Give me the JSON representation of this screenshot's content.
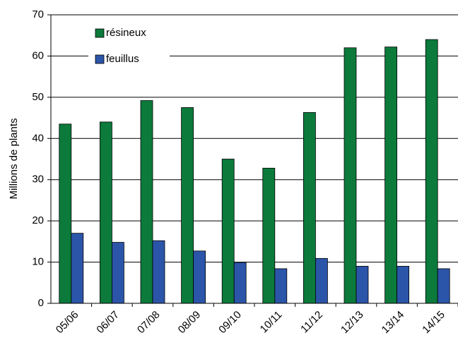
{
  "chart_data": {
    "type": "bar",
    "y_label": "Millions de plants",
    "categories": [
      "05/06",
      "06/07",
      "07/08",
      "08/09",
      "09/10",
      "10/11",
      "11/12",
      "12/13",
      "13/14",
      "14/15"
    ],
    "series": [
      {
        "name": "résineux",
        "color": "#0b7a3b",
        "values": [
          43.5,
          44,
          49.2,
          47.5,
          35,
          32.8,
          46.3,
          62,
          62.2,
          64
        ]
      },
      {
        "name": "feuillus",
        "color": "#2b55a8",
        "values": [
          17,
          14.8,
          15.2,
          12.7,
          9.9,
          8.4,
          10.9,
          9,
          9,
          8.4
        ]
      }
    ],
    "ylim": [
      0,
      70
    ],
    "yticks": [
      0,
      10,
      20,
      30,
      40,
      50,
      60,
      70
    ],
    "grid": true,
    "legend": "upper left"
  }
}
